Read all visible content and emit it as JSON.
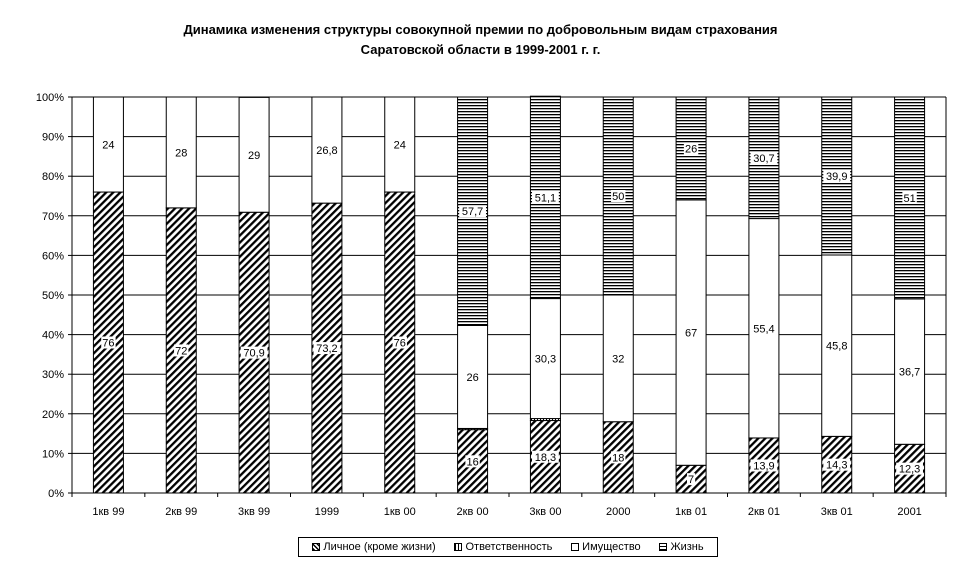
{
  "chart_data": {
    "type": "bar",
    "stacked": "percent",
    "title_line1": "Динамика изменения структуры совокупной премии по добровольным видам страхования",
    "title_line2": "Саратовской области в 1999-2001 г. г.",
    "categories": [
      "1кв 99",
      "2кв 99",
      "3кв 99",
      "1999",
      "1кв 00",
      "2кв 00",
      "3кв 00",
      "2000",
      "1кв 01",
      "2кв 01",
      "3кв 01",
      "2001"
    ],
    "y_ticks": [
      "0%",
      "10%",
      "20%",
      "30%",
      "40%",
      "50%",
      "60%",
      "70%",
      "80%",
      "90%",
      "100%"
    ],
    "ylim": [
      0,
      100
    ],
    "grid": true,
    "legend_position": "bottom",
    "series": [
      {
        "name": "Личное (кроме жизни)",
        "pattern": "diagonal",
        "values": [
          76,
          72,
          70.9,
          73.2,
          76,
          16,
          18.3,
          18,
          7,
          13.9,
          14.3,
          12.3
        ],
        "labels": [
          "76",
          "72",
          "70,9",
          "73,2",
          "76",
          "16",
          "18,3",
          "18",
          "7",
          "13,9",
          "14,3",
          "12,3"
        ]
      },
      {
        "name": "Ответственность",
        "pattern": "vertical",
        "values": [
          0,
          0,
          0,
          0,
          0,
          0.3,
          0.5,
          0,
          0,
          0,
          0,
          0
        ],
        "labels": [
          "",
          "",
          "",
          "",
          "",
          "",
          "",
          "",
          "",
          "",
          "",
          ""
        ]
      },
      {
        "name": "Имущество",
        "pattern": "white",
        "values": [
          24,
          28,
          29,
          26.8,
          24,
          26,
          30.3,
          32,
          67,
          55.4,
          45.8,
          36.7
        ],
        "labels": [
          "24",
          "28",
          "29",
          "26,8",
          "24",
          "26",
          "30,3",
          "32",
          "67",
          "55,4",
          "45,8",
          "36,7"
        ]
      },
      {
        "name": "Жизнь",
        "pattern": "horizontal",
        "values": [
          0,
          0,
          0,
          0,
          0,
          57.7,
          51.1,
          50,
          26,
          30.7,
          39.9,
          51
        ],
        "labels": [
          "",
          "",
          "",
          "",
          "",
          "57,7",
          "51,1",
          "50",
          "26",
          "30,7",
          "39,9",
          "51"
        ]
      }
    ]
  }
}
